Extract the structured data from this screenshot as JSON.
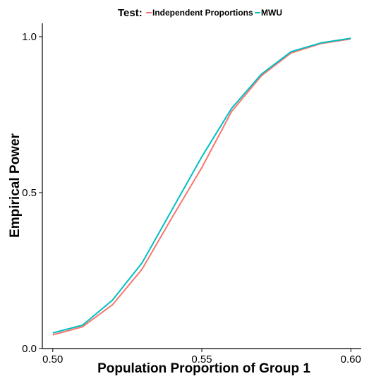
{
  "chart_data": {
    "type": "line",
    "xlabel": "Population Proportion of Group 1",
    "ylabel": "Empirical Power",
    "xlim": [
      0.4965,
      0.6035
    ],
    "ylim": [
      0.0,
      1.0
    ],
    "x_ticks": [
      "0.50",
      "0.55",
      "0.60"
    ],
    "y_ticks": [
      "0.0",
      "0.5",
      "1.0"
    ],
    "grid": false,
    "legend": {
      "title": "Test:",
      "position": "top",
      "entries": [
        "Independent Proportions",
        "MWU"
      ]
    },
    "x": [
      0.5,
      0.51,
      0.52,
      0.53,
      0.54,
      0.55,
      0.56,
      0.57,
      0.58,
      0.59,
      0.6
    ],
    "series": [
      {
        "name": "Independent Proportions",
        "color": "#F8766D",
        "values": [
          0.044,
          0.07,
          0.14,
          0.255,
          0.42,
          0.58,
          0.76,
          0.875,
          0.948,
          0.978,
          0.993
        ]
      },
      {
        "name": "MWU",
        "color": "#00BFC4",
        "values": [
          0.05,
          0.075,
          0.155,
          0.275,
          0.445,
          0.615,
          0.77,
          0.88,
          0.952,
          0.98,
          0.995
        ]
      }
    ]
  }
}
